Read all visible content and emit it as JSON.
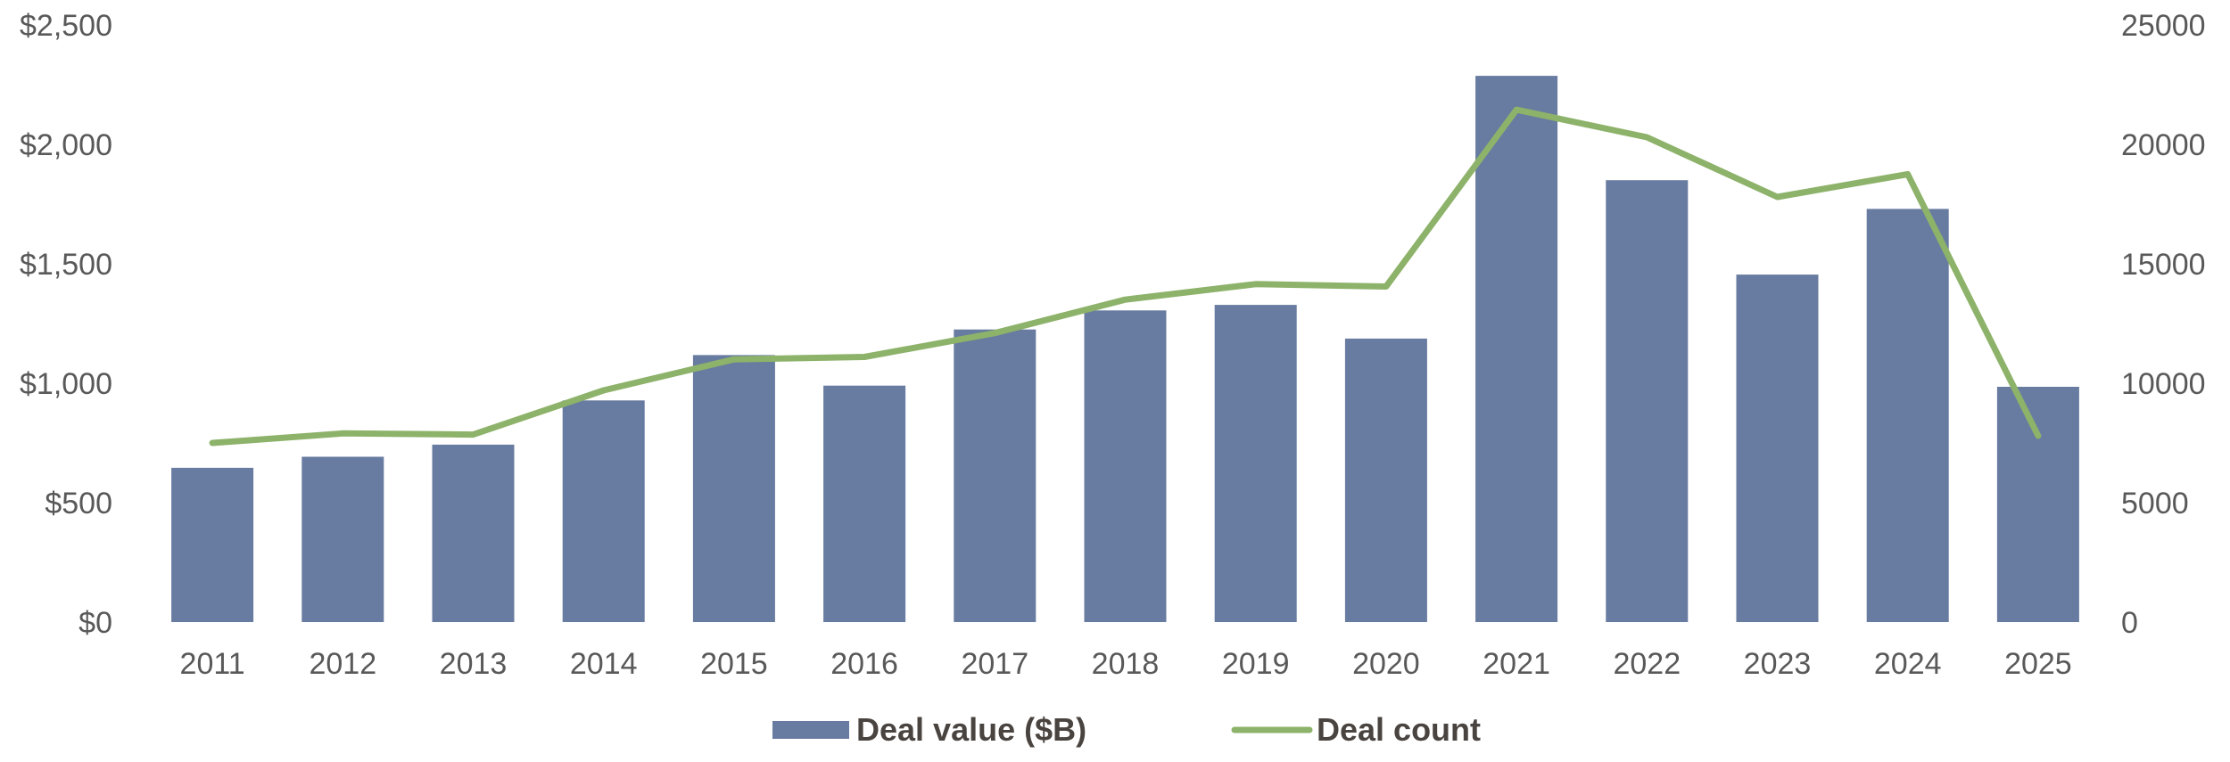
{
  "chart_data": {
    "type": "bar",
    "title": "",
    "xlabel": "",
    "ylabel": "",
    "categories": [
      "2011",
      "2012",
      "2013",
      "2014",
      "2015",
      "2016",
      "2017",
      "2018",
      "2019",
      "2020",
      "2021",
      "2022",
      "2023",
      "2024",
      "2025"
    ],
    "series": [
      {
        "name": "Deal value ($B)",
        "type": "bar",
        "axis": "left",
        "color": "#687ba0",
        "values": [
          646,
          692,
          743,
          928,
          1118,
          990,
          1225,
          1305,
          1328,
          1187,
          2287,
          1850,
          1455,
          1730,
          985
        ]
      },
      {
        "name": "Deal count",
        "type": "line",
        "axis": "right",
        "color": "#8db26a",
        "values": [
          7500,
          7900,
          7850,
          9700,
          11000,
          11100,
          12100,
          13500,
          14150,
          14050,
          21450,
          20300,
          17800,
          18750,
          7800
        ]
      }
    ],
    "y_left": {
      "range": [
        0,
        2500
      ],
      "ticks": [
        0,
        500,
        1000,
        1500,
        2000,
        2500
      ],
      "tick_labels": [
        "$0",
        "$500",
        "$1,000",
        "$1,500",
        "$2,000",
        "$2,500"
      ]
    },
    "y_right": {
      "range": [
        0,
        25000
      ],
      "ticks": [
        0,
        5000,
        10000,
        15000,
        20000,
        25000
      ],
      "tick_labels": [
        "0",
        "5000",
        "10000",
        "15000",
        "20000",
        "25000"
      ]
    },
    "grid": false,
    "legend": {
      "position": "bottom-center",
      "items": [
        "Deal value ($B)",
        "Deal count"
      ]
    }
  }
}
